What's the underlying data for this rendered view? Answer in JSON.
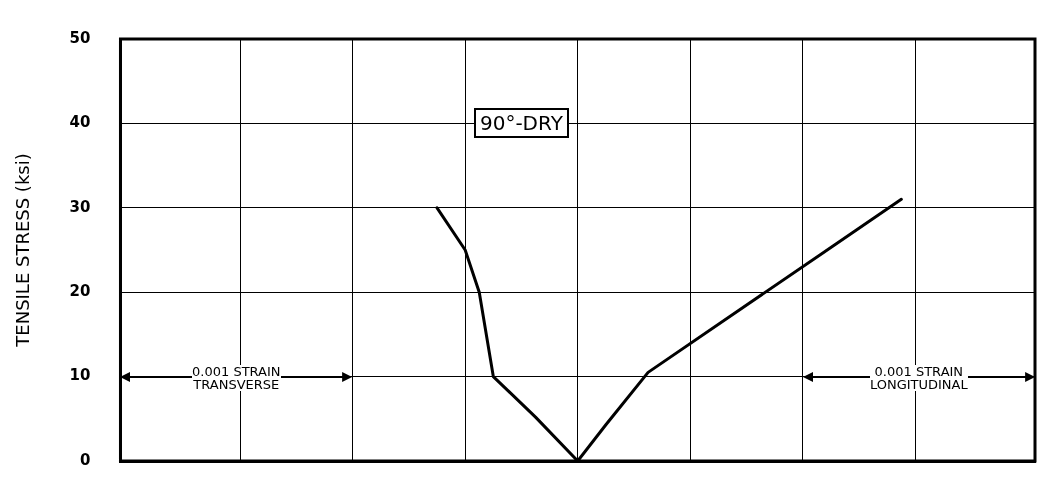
{
  "chart_data": {
    "type": "line",
    "ylabel": "TENSILE STRESS (ksi)",
    "categories": [
      null,
      null,
      null,
      null,
      null,
      null,
      null,
      null,
      null,
      null,
      null,
      null,
      null,
      null,
      null,
      null,
      null,
      null,
      null,
      null,
      null,
      null,
      null,
      null,
      null,
      null,
      null,
      null,
      null,
      null,
      null,
      null,
      null,
      null,
      null,
      null,
      null,
      null,
      null,
      null,
      null,
      null,
      null,
      null,
      null,
      null,
      null,
      null,
      null,
      null,
      null,
      null,
      null,
      null,
      null,
      null,
      null,
      null,
      null,
      null,
      null,
      null,
      null,
      null,
      null
    ],
    "ylim": [
      0,
      50
    ],
    "yticks": [
      0,
      10,
      20,
      30,
      40,
      50
    ],
    "series": [
      {
        "color": "#000000",
        "values": [
          null,
          null,
          null,
          null,
          null,
          null,
          null,
          null,
          null,
          null,
          null,
          null,
          null,
          null,
          null,
          null,
          null,
          null,
          null,
          null,
          null,
          null,
          30,
          null,
          25,
          20,
          10,
          null,
          null,
          5.2,
          null,
          null,
          0,
          null,
          null,
          null,
          null,
          null,
          null,
          null,
          null,
          null,
          null,
          null,
          null,
          null,
          null,
          null,
          null,
          null,
          null,
          null,
          null,
          null,
          null,
          null,
          null,
          null,
          null,
          null,
          null,
          null,
          null,
          null,
          null
        ]
      },
      {
        "color": "#000000",
        "values": [
          null,
          null,
          null,
          null,
          null,
          null,
          null,
          null,
          null,
          null,
          null,
          null,
          null,
          null,
          null,
          null,
          null,
          null,
          null,
          null,
          null,
          null,
          null,
          null,
          null,
          null,
          null,
          null,
          null,
          null,
          null,
          null,
          0,
          null,
          4.3,
          null,
          null,
          10.5,
          null,
          null,
          null,
          null,
          null,
          null,
          null,
          null,
          null,
          null,
          null,
          null,
          null,
          null,
          null,
          null,
          null,
          31,
          null,
          null,
          null,
          null,
          null,
          null,
          null,
          null,
          null
        ]
      }
    ],
    "annotations": [
      "90°-DRY",
      "0.001 STRAIN\nTRANSVERSE",
      "0.001 STRAIN\nLONGITUDINAL"
    ],
    "grid": true,
    "legend": false,
    "marker": "none",
    "line_style": "solid",
    "tick_labels": "y"
  }
}
